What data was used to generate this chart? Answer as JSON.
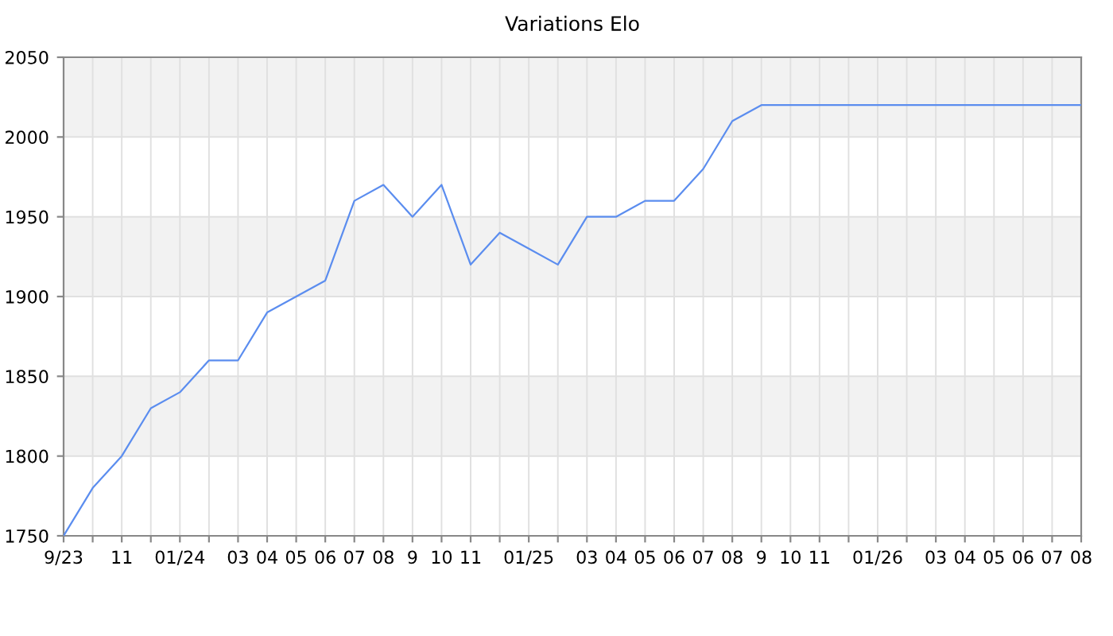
{
  "chart_data": {
    "type": "line",
    "title": "Variations Elo",
    "categories": [
      "9/23",
      null,
      "11",
      null,
      "01/24",
      null,
      "03",
      "04",
      "05",
      "06",
      "07",
      "08",
      "9",
      "10",
      "11",
      null,
      "01/25",
      null,
      "03",
      "04",
      "05",
      "06",
      "07",
      "08",
      "9",
      "10",
      "11",
      null,
      "01/26",
      null,
      "03",
      "04",
      "05",
      "06",
      "07",
      "08"
    ],
    "series": [
      {
        "color": "#5b8def",
        "values": [
          1750,
          1780,
          1800,
          1830,
          1840,
          1860,
          1860,
          1890,
          1900,
          1910,
          1960,
          1970,
          1950,
          1970,
          1920,
          1940,
          1930,
          1920,
          1950,
          1950,
          1960,
          1960,
          1980,
          2010,
          2020,
          2020,
          2020,
          2020,
          2020,
          2020,
          2020,
          2020,
          2020,
          2020,
          2020,
          2020
        ]
      }
    ],
    "ylim": [
      1750,
      2050
    ],
    "yticks": [
      1750,
      1800,
      1850,
      1900,
      1950,
      2000,
      2050
    ],
    "bands": [
      {
        "axis": "y",
        "from": 1800,
        "to": 1850,
        "color": "#f2f2f2"
      },
      {
        "axis": "y",
        "from": 1900,
        "to": 1950,
        "color": "#f2f2f2"
      },
      {
        "axis": "y",
        "from": 2000,
        "to": 2050,
        "color": "#f2f2f2"
      }
    ],
    "grid": true,
    "marker": "none",
    "line_style": "solid"
  }
}
